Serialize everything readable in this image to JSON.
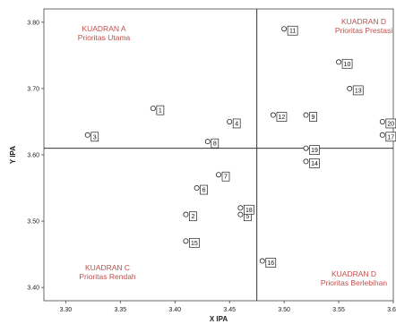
{
  "chart_data": {
    "type": "scatter",
    "xlabel": "X IPA",
    "ylabel": "Y IPA",
    "xlim": [
      3.28,
      3.6
    ],
    "ylim": [
      3.38,
      3.82
    ],
    "x_ticks": [
      "3.30",
      "3.35",
      "3.40",
      "3.45",
      "3.50",
      "3.55",
      "3.60"
    ],
    "x_tick_values": [
      3.3,
      3.35,
      3.4,
      3.45,
      3.5,
      3.55,
      3.6
    ],
    "y_ticks": [
      "3.40",
      "3.50",
      "3.60",
      "3.70",
      "3.80"
    ],
    "y_tick_values": [
      3.4,
      3.5,
      3.6,
      3.7,
      3.8
    ],
    "reference_lines": {
      "x": 3.475,
      "y": 3.61
    },
    "grid": false,
    "quadrant_labels": [
      {
        "id": "a",
        "lines": [
          "KUADRAN A",
          "Prioritas Utama"
        ],
        "position": "top-left"
      },
      {
        "id": "b",
        "lines": [
          "KUADRAN D",
          "Prioritas Prestasi"
        ],
        "position": "top-right"
      },
      {
        "id": "c",
        "lines": [
          "KUADRAN C",
          "Prioritas Rendah"
        ],
        "position": "bottom-left"
      },
      {
        "id": "d",
        "lines": [
          "KUADRAN D",
          "Prioritas Berlebihan"
        ],
        "position": "bottom-right"
      }
    ],
    "points": [
      {
        "label": "1",
        "x": 3.38,
        "y": 3.67
      },
      {
        "label": "2",
        "x": 3.41,
        "y": 3.51
      },
      {
        "label": "3",
        "x": 3.32,
        "y": 3.63
      },
      {
        "label": "4",
        "x": 3.45,
        "y": 3.65
      },
      {
        "label": "5",
        "x": 3.46,
        "y": 3.51
      },
      {
        "label": "6",
        "x": 3.42,
        "y": 3.55
      },
      {
        "label": "7",
        "x": 3.44,
        "y": 3.57
      },
      {
        "label": "8",
        "x": 3.43,
        "y": 3.62
      },
      {
        "label": "9",
        "x": 3.52,
        "y": 3.66
      },
      {
        "label": "10",
        "x": 3.55,
        "y": 3.74
      },
      {
        "label": "11",
        "x": 3.5,
        "y": 3.79
      },
      {
        "label": "12",
        "x": 3.49,
        "y": 3.66
      },
      {
        "label": "13",
        "x": 3.56,
        "y": 3.7
      },
      {
        "label": "14",
        "x": 3.52,
        "y": 3.59
      },
      {
        "label": "15",
        "x": 3.41,
        "y": 3.47
      },
      {
        "label": "16",
        "x": 3.48,
        "y": 3.44
      },
      {
        "label": "17",
        "x": 3.59,
        "y": 3.63
      },
      {
        "label": "18",
        "x": 3.46,
        "y": 3.52
      },
      {
        "label": "19",
        "x": 3.52,
        "y": 3.61
      },
      {
        "label": "20",
        "x": 3.59,
        "y": 3.65
      }
    ]
  }
}
